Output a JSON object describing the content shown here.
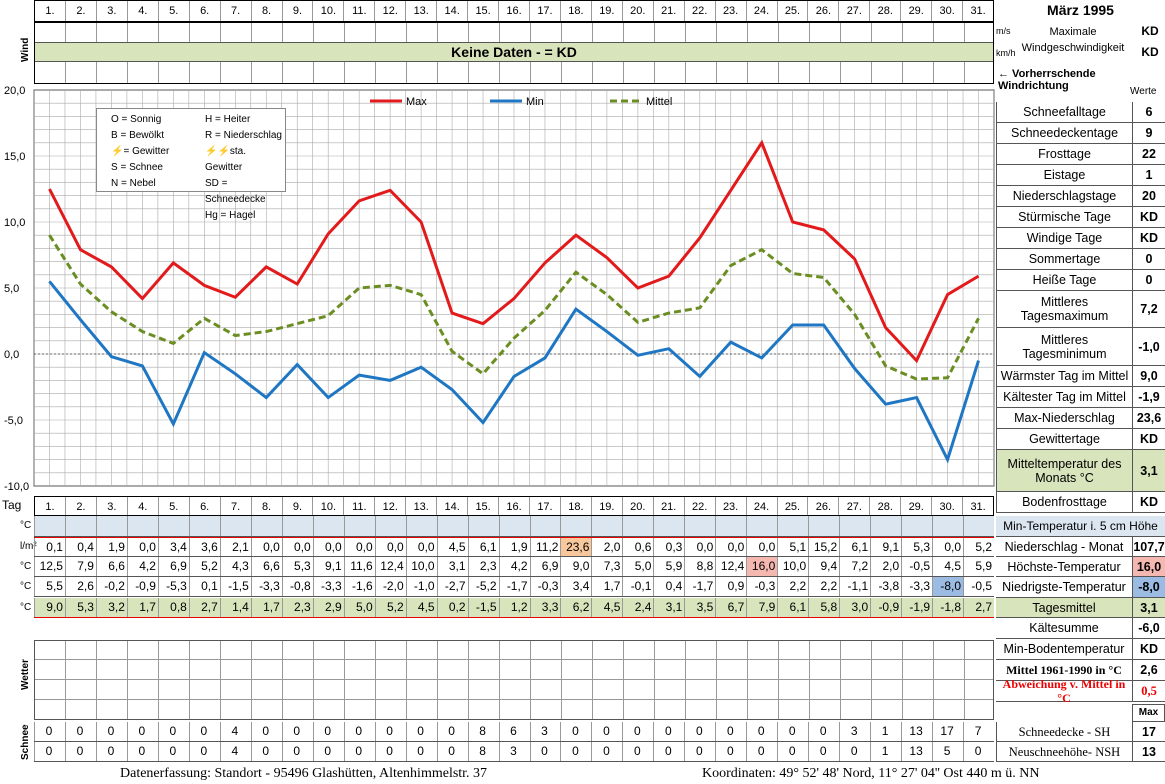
{
  "header": {
    "title": "März 1995",
    "days": [
      "1.",
      "2.",
      "3.",
      "4.",
      "5.",
      "6.",
      "7.",
      "8.",
      "9.",
      "10.",
      "11.",
      "12.",
      "13.",
      "14.",
      "15.",
      "16.",
      "17.",
      "18.",
      "19.",
      "20.",
      "21.",
      "22.",
      "23.",
      "24.",
      "25.",
      "26.",
      "27.",
      "28.",
      "29.",
      "30.",
      "31."
    ],
    "tag_label": "Tag"
  },
  "wind": {
    "label": "Wind",
    "no_data": "Keine Daten -  = KD",
    "unit_ms": "m/s",
    "unit_kmh": "km/h",
    "max_label_1": "Maximale",
    "max_label_2": "Windgeschwindigkeit",
    "max_ms": "KD",
    "max_kmh": "KD",
    "direction_label": "← Vorherrschende Windrichtung",
    "werte_label": "Werte"
  },
  "legend_box": {
    "left": [
      "O = Sonnig",
      "B = Bewölkt",
      "= Gewitter",
      "S = Schnee",
      "N = Nebel"
    ],
    "right": [
      "H = Heiter",
      "R = Niederschlag",
      "sta. Gewitter",
      "SD = Schneedecke",
      "Hg = Hagel"
    ]
  },
  "chart_data": {
    "type": "line",
    "x": [
      1,
      2,
      3,
      4,
      5,
      6,
      7,
      8,
      9,
      10,
      11,
      12,
      13,
      14,
      15,
      16,
      17,
      18,
      19,
      20,
      21,
      22,
      23,
      24,
      25,
      26,
      27,
      28,
      29,
      30,
      31
    ],
    "ylim": [
      -10,
      20
    ],
    "yticks": [
      "20,0",
      "15,0",
      "10,0",
      "5,0",
      "0,0",
      "-5,0",
      "-10,0"
    ],
    "grid": true,
    "legend_position": "top",
    "series": [
      {
        "name": "Max",
        "color": "#e31a1c",
        "values": [
          12.5,
          7.9,
          6.6,
          4.2,
          6.9,
          5.2,
          4.3,
          6.6,
          5.3,
          9.1,
          11.6,
          12.4,
          10.0,
          3.1,
          2.3,
          4.2,
          6.9,
          9.0,
          7.3,
          5.0,
          5.9,
          8.8,
          12.4,
          16.0,
          10.0,
          9.4,
          7.2,
          2.0,
          -0.5,
          4.5,
          5.9
        ]
      },
      {
        "name": "Min",
        "color": "#1f77c4",
        "values": [
          5.5,
          2.6,
          -0.2,
          -0.9,
          -5.3,
          0.1,
          -1.5,
          -3.3,
          -0.8,
          -3.3,
          -1.6,
          -2.0,
          -1.0,
          -2.7,
          -5.2,
          -1.7,
          -0.3,
          3.4,
          1.7,
          -0.1,
          0.4,
          -1.7,
          0.9,
          -0.3,
          2.2,
          2.2,
          -1.1,
          -3.8,
          -3.3,
          -8.0,
          -0.5
        ]
      },
      {
        "name": "Mittel",
        "color": "#6b8e23",
        "values": [
          9.0,
          5.3,
          3.2,
          1.7,
          0.8,
          2.7,
          1.4,
          1.7,
          2.3,
          2.9,
          5.0,
          5.2,
          4.5,
          0.2,
          -1.5,
          1.2,
          3.3,
          6.2,
          4.5,
          2.4,
          3.1,
          3.5,
          6.7,
          7.9,
          6.1,
          5.8,
          3.0,
          -0.9,
          -1.9,
          -1.8,
          2.7
        ]
      }
    ]
  },
  "table": {
    "rows": [
      {
        "unit": "°C",
        "values": [
          "",
          "",
          "",
          "",
          "",
          "",
          "",
          "",
          "",
          "",
          "",
          "",
          "",
          "",
          "",
          "",
          "",
          "",
          "",
          "",
          "",
          "",
          "",
          "",
          "",
          "",
          "",
          "",
          "",
          "",
          ""
        ]
      },
      {
        "unit": "l/m²",
        "values": [
          "0,1",
          "0,4",
          "1,9",
          "0,0",
          "3,4",
          "3,6",
          "2,1",
          "0,0",
          "0,0",
          "0,0",
          "0,0",
          "0,0",
          "0,0",
          "4,5",
          "6,1",
          "1,9",
          "11,2",
          "23,6",
          "2,0",
          "0,6",
          "0,3",
          "0,0",
          "0,0",
          "0,0",
          "5,1",
          "15,2",
          "6,1",
          "9,1",
          "5,3",
          "0,0",
          "5,2"
        ]
      },
      {
        "unit": "°C",
        "values": [
          "12,5",
          "7,9",
          "6,6",
          "4,2",
          "6,9",
          "5,2",
          "4,3",
          "6,6",
          "5,3",
          "9,1",
          "11,6",
          "12,4",
          "10,0",
          "3,1",
          "2,3",
          "4,2",
          "6,9",
          "9,0",
          "7,3",
          "5,0",
          "5,9",
          "8,8",
          "12,4",
          "16,0",
          "10,0",
          "9,4",
          "7,2",
          "2,0",
          "-0,5",
          "4,5",
          "5,9"
        ]
      },
      {
        "unit": "°C",
        "values": [
          "5,5",
          "2,6",
          "-0,2",
          "-0,9",
          "-5,3",
          "0,1",
          "-1,5",
          "-3,3",
          "-0,8",
          "-3,3",
          "-1,6",
          "-2,0",
          "-1,0",
          "-2,7",
          "-5,2",
          "-1,7",
          "-0,3",
          "3,4",
          "1,7",
          "-0,1",
          "0,4",
          "-1,7",
          "0,9",
          "-0,3",
          "2,2",
          "2,2",
          "-1,1",
          "-3,8",
          "-3,3",
          "-8,0",
          "-0,5"
        ]
      },
      {
        "unit": "°C",
        "values": [
          "9,0",
          "5,3",
          "3,2",
          "1,7",
          "0,8",
          "2,7",
          "1,4",
          "1,7",
          "2,3",
          "2,9",
          "5,0",
          "5,2",
          "4,5",
          "0,2",
          "-1,5",
          "1,2",
          "3,3",
          "6,2",
          "4,5",
          "2,4",
          "3,1",
          "3,5",
          "6,7",
          "7,9",
          "6,1",
          "5,8",
          "3,0",
          "-0,9",
          "-1,9",
          "-1,8",
          "2,7"
        ]
      }
    ],
    "wetter_label": "Wetter",
    "schnee_label": "Schnee",
    "schnee_sh": [
      "0",
      "0",
      "0",
      "0",
      "0",
      "0",
      "4",
      "0",
      "0",
      "0",
      "0",
      "0",
      "0",
      "0",
      "8",
      "6",
      "3",
      "0",
      "0",
      "0",
      "0",
      "0",
      "0",
      "0",
      "0",
      "0",
      "3",
      "1",
      "13",
      "17",
      "7"
    ],
    "schnee_nsh": [
      "0",
      "0",
      "0",
      "0",
      "0",
      "0",
      "4",
      "0",
      "0",
      "0",
      "0",
      "0",
      "0",
      "0",
      "8",
      "3",
      "0",
      "0",
      "0",
      "0",
      "0",
      "0",
      "0",
      "0",
      "0",
      "0",
      "0",
      "1",
      "13",
      "5",
      "0"
    ]
  },
  "stats": {
    "top": [
      {
        "label": "Schneefalltage",
        "value": "6"
      },
      {
        "label": "Schneedeckentage",
        "value": "9"
      },
      {
        "label": "Frosttage",
        "value": "22"
      },
      {
        "label": "Eistage",
        "value": "1"
      },
      {
        "label": "Niederschlagstage",
        "value": "20"
      },
      {
        "label": "Stürmische Tage",
        "value": "KD"
      },
      {
        "label": "Windige Tage",
        "value": "KD"
      },
      {
        "label": "Sommertage",
        "value": "0"
      },
      {
        "label": "Heiße Tage",
        "value": "0"
      },
      {
        "label": "Mittleres Tagesmaximum",
        "value": "7,2"
      },
      {
        "label": "Mittleres Tagesminimum",
        "value": "-1,0"
      },
      {
        "label": "Wärmster Tag im Mittel",
        "value": "9,0"
      },
      {
        "label": "Kältester Tag im Mittel",
        "value": "-1,9"
      },
      {
        "label": "Max-Niederschlag",
        "value": "23,6"
      },
      {
        "label": "Gewittertage",
        "value": "KD"
      },
      {
        "label": "Mitteltemperatur des Monats °C",
        "value": "3,1"
      },
      {
        "label": "Bodenfrosttage",
        "value": "KD"
      }
    ],
    "min_temp_5cm": "Min-Temperatur i. 5 cm Höhe",
    "bottom": [
      {
        "label": "Niederschlag - Monat",
        "value": "107,7"
      },
      {
        "label": "Höchste-Temperatur",
        "value": "16,0"
      },
      {
        "label": "Niedrigste-Temperatur",
        "value": "-8,0"
      },
      {
        "label": "Tagesmittel",
        "value": "3,1"
      },
      {
        "label": "Kältesumme",
        "value": "-6,0"
      },
      {
        "label": "Min-Bodentemperatur",
        "value": "KD"
      },
      {
        "label": "Mittel 1961-1990 in °C",
        "value": "2,6"
      },
      {
        "label": "Abweichung v. Mittel in °C",
        "value": "0,5"
      }
    ],
    "max_label": "Max",
    "snow": [
      {
        "label": "Schneedecke -  SH",
        "value": "17"
      },
      {
        "label": "Neuschneehöhe- NSH",
        "value": "13"
      }
    ]
  },
  "footer": {
    "left": "Datenerfassung:  Standort -  95496  Glashütten, Altenhimmelstr. 37",
    "right": "Koordinaten:  49° 52' 48' Nord,  11° 27' 04'' Ost   440 m ü. NN"
  }
}
